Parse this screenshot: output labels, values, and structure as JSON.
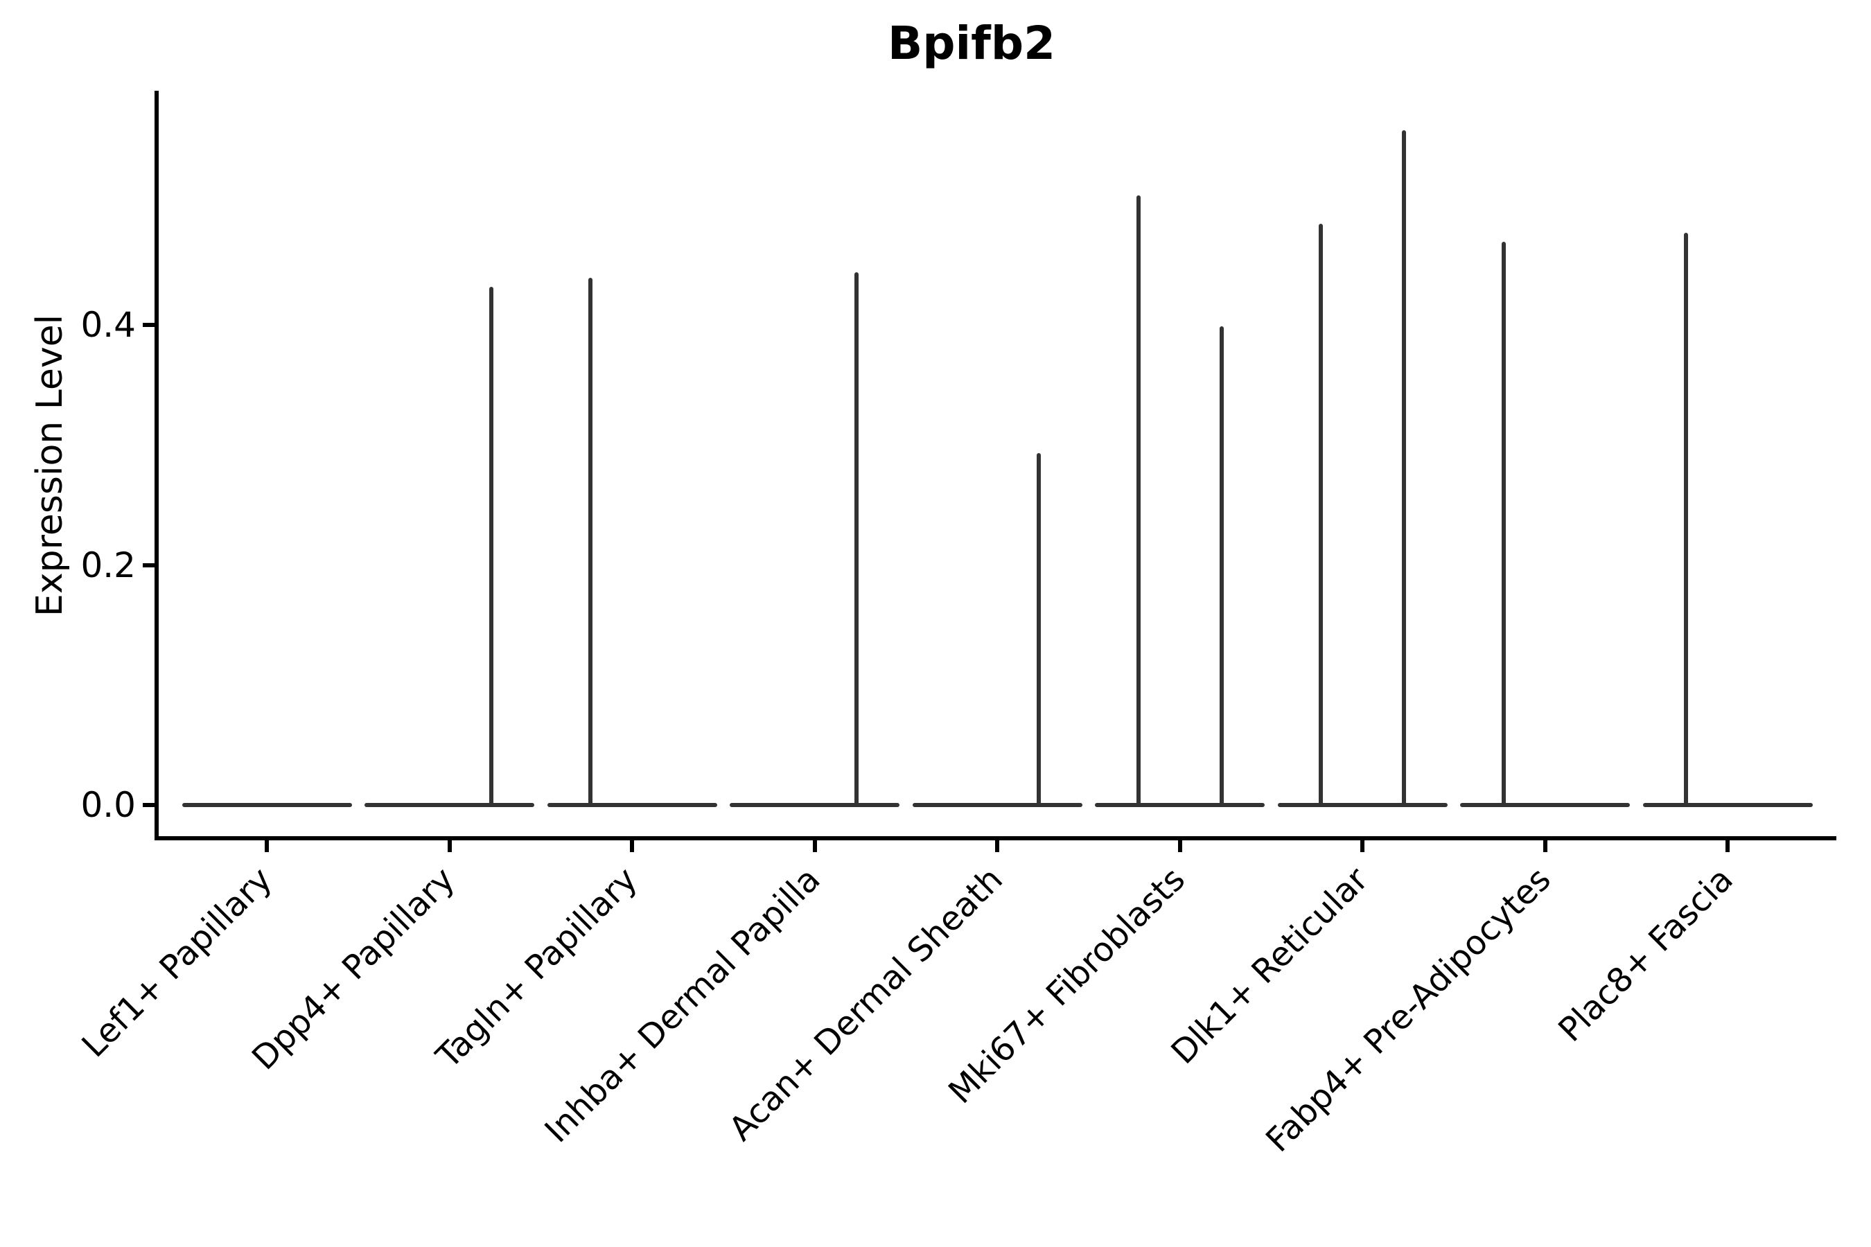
{
  "title": "Bpifb2",
  "colors": {
    "background": "#ffffff",
    "axis": "#000000",
    "text": "#000000",
    "violin": "#333333"
  },
  "chart_data": {
    "type": "violin",
    "title": "Bpifb2",
    "xlabel": "",
    "ylabel": "Expression Level",
    "yticks": [
      0.0,
      0.2,
      0.4
    ],
    "ylim": [
      -0.028,
      0.594
    ],
    "grid": false,
    "legend": null,
    "categories": [
      "Lef1+ Papillary",
      "Dpp4+ Papillary",
      "Tagln+ Papillary",
      "Inhba+ Dermal Papilla",
      "Acan+ Dermal Sheath",
      "Mki67+ Fibroblasts",
      "Dlk1+ Reticular",
      "Fabp4+ Pre-Adipocytes",
      "Plac8+ Fascia"
    ],
    "description": "Each category shows a flat violin body at expression 0 with thin vertical density tails rising to the maximum expression value; tails sit slightly left/right of the category center.",
    "violins": [
      {
        "category": "Lef1+ Papillary",
        "body_value": 0.0,
        "tails": []
      },
      {
        "category": "Dpp4+ Papillary",
        "body_value": 0.0,
        "tails": [
          {
            "side": "right",
            "max": 0.432
          }
        ]
      },
      {
        "category": "Tagln+ Papillary",
        "body_value": 0.0,
        "tails": [
          {
            "side": "left",
            "max": 0.439
          }
        ]
      },
      {
        "category": "Inhba+ Dermal Papilla",
        "body_value": 0.0,
        "tails": [
          {
            "side": "right",
            "max": 0.444
          }
        ]
      },
      {
        "category": "Acan+ Dermal Sheath",
        "body_value": 0.0,
        "tails": [
          {
            "side": "right",
            "max": 0.293
          }
        ]
      },
      {
        "category": "Mki67+ Fibroblasts",
        "body_value": 0.0,
        "tails": [
          {
            "side": "left",
            "max": 0.508
          },
          {
            "side": "right",
            "max": 0.399
          }
        ]
      },
      {
        "category": "Dlk1+ Reticular",
        "body_value": 0.0,
        "tails": [
          {
            "side": "left",
            "max": 0.484
          },
          {
            "side": "right",
            "max": 0.562
          }
        ]
      },
      {
        "category": "Fabp4+ Pre-Adipocytes",
        "body_value": 0.0,
        "tails": [
          {
            "side": "left",
            "max": 0.469
          }
        ]
      },
      {
        "category": "Plac8+ Fascia",
        "body_value": 0.0,
        "tails": [
          {
            "side": "left",
            "max": 0.477
          }
        ]
      }
    ]
  }
}
